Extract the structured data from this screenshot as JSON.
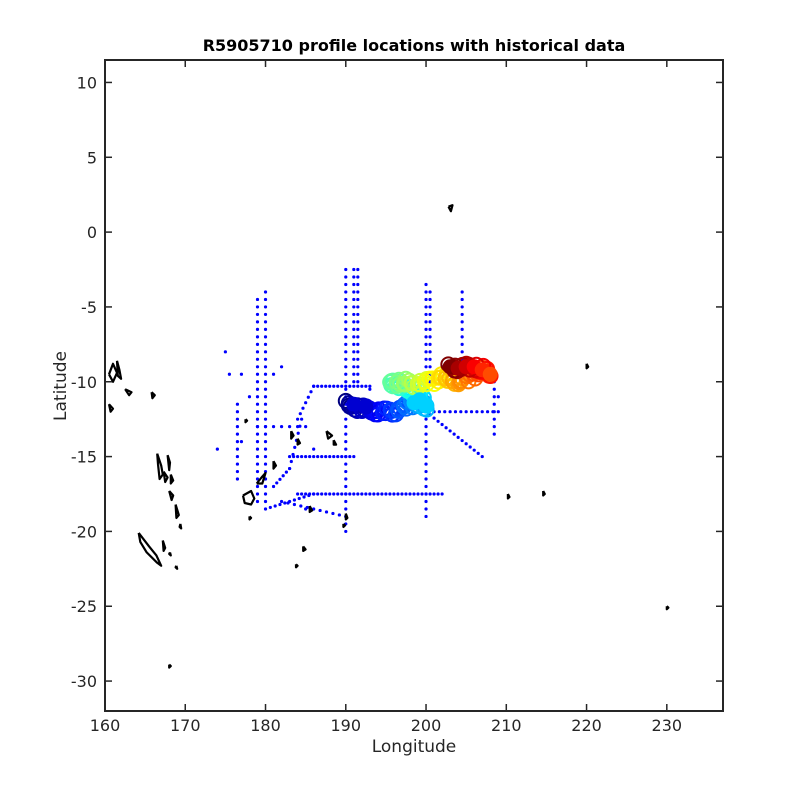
{
  "chart_data": {
    "type": "scatter",
    "title": "R5905710 profile locations with historical data",
    "xlabel": "Longitude",
    "ylabel": "Latitude",
    "xlim": [
      160,
      237
    ],
    "ylim": [
      -32,
      11.5
    ],
    "xticks": [
      160,
      170,
      180,
      190,
      200,
      210,
      220,
      230
    ],
    "yticks": [
      10,
      5,
      0,
      -5,
      -10,
      -15,
      -20,
      -25,
      -30
    ],
    "grid": false,
    "colors": {
      "historical": "#0000ff",
      "coast": "#000000",
      "colormap": "jet"
    },
    "series": [
      {
        "kind": "historical",
        "lines": [
          {
            "lon": 190,
            "lat_from": -2.5,
            "lat_to": -20,
            "step": 0.5
          },
          {
            "lon": 191,
            "lat_from": -2.5,
            "lat_to": -10,
            "step": 0.5
          },
          {
            "lon": 191.5,
            "lat_from": -2.5,
            "lat_to": -10,
            "step": 0.5
          },
          {
            "lon": 179,
            "lat_from": -4.5,
            "lat_to": -18,
            "step": 0.5
          },
          {
            "lon": 180,
            "lat_from": -4,
            "lat_to": -18,
            "step": 0.5
          },
          {
            "lon": 200,
            "lat_from": -3.5,
            "lat_to": -19,
            "step": 0.5
          },
          {
            "lon": 200.5,
            "lat_from": -4,
            "lat_to": -10,
            "step": 0.5
          },
          {
            "lon": 204.5,
            "lat_from": -4,
            "lat_to": -9,
            "step": 0.5
          },
          {
            "lon": 208.5,
            "lat_from": -9.5,
            "lat_to": -13.5,
            "step": 0.5
          },
          {
            "lon": 176.5,
            "lat_from": -11.5,
            "lat_to": -16.5,
            "step": 0.5
          }
        ],
        "segments": [
          {
            "from": [
              180,
              -18.5
            ],
            "to": [
              186,
              -17.5
            ],
            "n": 10
          },
          {
            "from": [
              184,
              -17.5
            ],
            "to": [
              202,
              -17.5
            ],
            "n": 36
          },
          {
            "from": [
              183,
              -15
            ],
            "to": [
              191,
              -15
            ],
            "n": 16
          },
          {
            "from": [
              184,
              -12.5
            ],
            "to": [
              186,
              -10.3
            ],
            "n": 6
          },
          {
            "from": [
              186,
              -10.3
            ],
            "to": [
              193,
              -10.3
            ],
            "n": 14
          },
          {
            "from": [
              183,
              -15.8
            ],
            "to": [
              184.5,
              -12.5
            ],
            "n": 7
          },
          {
            "from": [
              181,
              -17
            ],
            "to": [
              183,
              -15.8
            ],
            "n": 5
          },
          {
            "from": [
              200,
              -12
            ],
            "to": [
              207,
              -15
            ],
            "n": 14
          },
          {
            "from": [
              201,
              -12
            ],
            "to": [
              209,
              -12
            ],
            "n": 12
          },
          {
            "from": [
              182,
              -18
            ],
            "to": [
              190,
              -19
            ],
            "n": 10
          },
          {
            "from": [
              179,
              -13
            ],
            "to": [
              185,
              -13
            ],
            "n": 6
          }
        ],
        "points": [
          [
            175,
            -8
          ],
          [
            175.5,
            -9.5
          ],
          [
            177,
            -9.5
          ],
          [
            181,
            -9.5
          ],
          [
            182,
            -9
          ],
          [
            178,
            -11
          ],
          [
            177,
            -14
          ],
          [
            174,
            -14.5
          ],
          [
            185,
            -18.5
          ],
          [
            193,
            -10.5
          ],
          [
            202,
            -9
          ],
          [
            206,
            -9.5
          ],
          [
            209,
            -11
          ],
          [
            190.5,
            -11
          ],
          [
            186,
            -14.5
          ]
        ]
      },
      {
        "kind": "profiles",
        "track": [
          [
            190,
            -11.5
          ],
          [
            192,
            -11.8
          ],
          [
            194,
            -12.0
          ],
          [
            196,
            -12.0
          ],
          [
            198,
            -11.5
          ],
          [
            199,
            -11.3
          ],
          [
            200,
            -11.8
          ],
          [
            199.5,
            -11.0
          ],
          [
            198,
            -10.5
          ],
          [
            196.5,
            -10.2
          ],
          [
            195.5,
            -10.1
          ],
          [
            197,
            -10.0
          ],
          [
            198.5,
            -10.2
          ],
          [
            200,
            -10.0
          ],
          [
            201,
            -9.9
          ],
          [
            202,
            -9.6
          ],
          [
            203,
            -9.9
          ],
          [
            204,
            -10.0
          ],
          [
            205,
            -9.8
          ],
          [
            206,
            -9.5
          ],
          [
            207,
            -9.2
          ],
          [
            208,
            -9.5
          ],
          [
            207,
            -9.2
          ],
          [
            206,
            -9.0
          ],
          [
            205,
            -9.0
          ],
          [
            204,
            -9.1
          ],
          [
            203,
            -9.0
          ]
        ]
      },
      {
        "kind": "coastline",
        "islands": [
          [
            [
              160.5,
              -9.5
            ],
            [
              161,
              -8.8
            ],
            [
              161.5,
              -9.4
            ],
            [
              161,
              -10
            ],
            [
              160.5,
              -9.5
            ]
          ],
          [
            [
              161.5,
              -8.6
            ],
            [
              161.8,
              -9.2
            ],
            [
              162,
              -9.8
            ],
            [
              161.6,
              -9.6
            ],
            [
              161.5,
              -8.6
            ]
          ],
          [
            [
              162.5,
              -10.5
            ],
            [
              163.3,
              -10.7
            ],
            [
              163,
              -10.9
            ],
            [
              162.5,
              -10.5
            ]
          ],
          [
            [
              160.5,
              -11.5
            ],
            [
              161,
              -11.8
            ],
            [
              160.7,
              -12
            ],
            [
              160.5,
              -11.5
            ]
          ],
          [
            [
              165.8,
              -10.7
            ],
            [
              166.2,
              -10.9
            ],
            [
              165.9,
              -11.1
            ],
            [
              165.8,
              -10.7
            ]
          ],
          [
            [
              166.5,
              -14.8
            ],
            [
              167,
              -15.6
            ],
            [
              167.2,
              -16.2
            ],
            [
              166.8,
              -16.5
            ],
            [
              166.6,
              -15.5
            ],
            [
              166.5,
              -14.8
            ]
          ],
          [
            [
              167.3,
              -16
            ],
            [
              167.8,
              -16.4
            ],
            [
              167.5,
              -16.7
            ],
            [
              167.3,
              -16
            ]
          ],
          [
            [
              167.8,
              -14.9
            ],
            [
              168.1,
              -15.4
            ],
            [
              168,
              -15.9
            ],
            [
              167.8,
              -14.9
            ]
          ],
          [
            [
              168.2,
              -16.2
            ],
            [
              168.5,
              -16.6
            ],
            [
              168.2,
              -16.8
            ],
            [
              168.2,
              -16.2
            ]
          ],
          [
            [
              168,
              -17.3
            ],
            [
              168.5,
              -17.6
            ],
            [
              168.3,
              -17.9
            ],
            [
              168,
              -17.3
            ]
          ],
          [
            [
              168.8,
              -18.2
            ],
            [
              169.2,
              -18.9
            ],
            [
              168.9,
              -19.1
            ],
            [
              168.8,
              -18.2
            ]
          ],
          [
            [
              169.4,
              -19.5
            ],
            [
              169.5,
              -19.8
            ],
            [
              169.3,
              -19.7
            ],
            [
              169.4,
              -19.5
            ]
          ],
          [
            [
              164.2,
              -20.1
            ],
            [
              165.5,
              -21
            ],
            [
              166.4,
              -21.6
            ],
            [
              167,
              -22.3
            ],
            [
              166.5,
              -22.1
            ],
            [
              165.2,
              -21.4
            ],
            [
              164.4,
              -20.7
            ],
            [
              164.2,
              -20.1
            ]
          ],
          [
            [
              167.2,
              -20.6
            ],
            [
              167.5,
              -21.1
            ],
            [
              167.3,
              -21.3
            ],
            [
              167.2,
              -20.6
            ]
          ],
          [
            [
              168.1,
              -21.4
            ],
            [
              168.2,
              -21.6
            ],
            [
              168.0,
              -21.5
            ],
            [
              168.1,
              -21.4
            ]
          ],
          [
            [
              168.9,
              -22.3
            ],
            [
              169,
              -22.5
            ],
            [
              168.8,
              -22.4
            ],
            [
              168.9,
              -22.3
            ]
          ],
          [
            [
              168,
              -28.9
            ],
            [
              168.2,
              -29
            ],
            [
              168,
              -29.1
            ],
            [
              168,
              -28.9
            ]
          ],
          [
            [
              177.2,
              -17.6
            ],
            [
              178.2,
              -17.3
            ],
            [
              178.6,
              -17.8
            ],
            [
              178.2,
              -18.2
            ],
            [
              177.4,
              -18.1
            ],
            [
              177.2,
              -17.6
            ]
          ],
          [
            [
              178.9,
              -16.8
            ],
            [
              179.5,
              -16.4
            ],
            [
              180,
              -16.1
            ],
            [
              179.6,
              -16.8
            ],
            [
              178.9,
              -16.8
            ]
          ],
          [
            [
              178,
              -19
            ],
            [
              178.2,
              -19.1
            ],
            [
              178,
              -19.2
            ],
            [
              178,
              -19
            ]
          ],
          [
            [
              177.5,
              -12.5
            ],
            [
              177.7,
              -12.6
            ],
            [
              177.5,
              -12.7
            ],
            [
              177.5,
              -12.5
            ]
          ],
          [
            [
              181,
              -15.3
            ],
            [
              181.3,
              -15.6
            ],
            [
              181,
              -15.8
            ],
            [
              181,
              -15.3
            ]
          ],
          [
            [
              183.2,
              -13.3
            ],
            [
              183.5,
              -13.6
            ],
            [
              183.2,
              -13.8
            ],
            [
              183.2,
              -13.3
            ]
          ],
          [
            [
              184,
              -13.8
            ],
            [
              184.3,
              -14.1
            ],
            [
              184,
              -14.2
            ],
            [
              184,
              -13.8
            ]
          ],
          [
            [
              187.6,
              -13.3
            ],
            [
              188.3,
              -13.6
            ],
            [
              187.8,
              -13.8
            ],
            [
              187.6,
              -13.3
            ]
          ],
          [
            [
              188.5,
              -13.9
            ],
            [
              188.8,
              -14.2
            ],
            [
              188.5,
              -14.2
            ],
            [
              188.5,
              -13.9
            ]
          ],
          [
            [
              184.7,
              -21
            ],
            [
              185,
              -21.2
            ],
            [
              184.7,
              -21.3
            ],
            [
              184.7,
              -21
            ]
          ],
          [
            [
              183.8,
              -22.2
            ],
            [
              184,
              -22.3
            ],
            [
              183.8,
              -22.4
            ],
            [
              183.8,
              -22.2
            ]
          ],
          [
            [
              185.5,
              -18.3
            ],
            [
              185.8,
              -18.6
            ],
            [
              185.5,
              -18.7
            ],
            [
              185.5,
              -18.3
            ]
          ],
          [
            [
              202.8,
              1.7
            ],
            [
              203.3,
              1.8
            ],
            [
              203.1,
              1.4
            ],
            [
              202.8,
              1.7
            ]
          ],
          [
            [
              220,
              -8.8
            ],
            [
              220.2,
              -9
            ],
            [
              220,
              -9.1
            ],
            [
              220,
              -8.8
            ]
          ],
          [
            [
              210.2,
              -17.5
            ],
            [
              210.4,
              -17.7
            ],
            [
              210.2,
              -17.8
            ],
            [
              210.2,
              -17.5
            ]
          ],
          [
            [
              214.6,
              -17.3
            ],
            [
              214.8,
              -17.5
            ],
            [
              214.6,
              -17.6
            ],
            [
              214.6,
              -17.3
            ]
          ],
          [
            [
              230,
              -25
            ],
            [
              230.2,
              -25.1
            ],
            [
              230,
              -25.2
            ],
            [
              230,
              -25
            ]
          ],
          [
            [
              190,
              -18.8
            ],
            [
              190.2,
              -19.1
            ],
            [
              190,
              -19.2
            ],
            [
              190,
              -18.8
            ]
          ],
          [
            [
              189.7,
              -19.5
            ],
            [
              189.9,
              -19.6
            ],
            [
              189.7,
              -19.7
            ],
            [
              189.7,
              -19.5
            ]
          ]
        ]
      }
    ]
  }
}
